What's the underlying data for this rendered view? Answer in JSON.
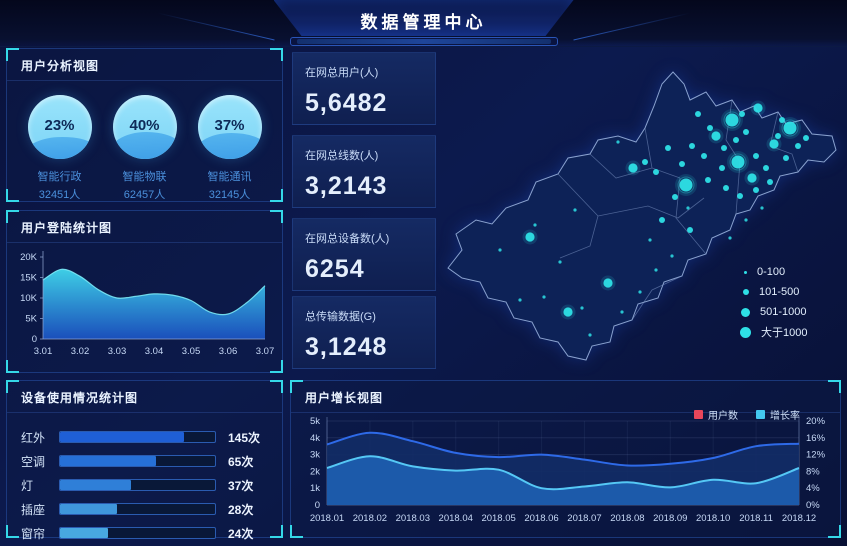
{
  "header": {
    "title": "数据管理中心"
  },
  "panels": {
    "user_analysis": {
      "title": "用户分析视图",
      "gauges": [
        {
          "percent": "23%",
          "value": 23,
          "label": "智能行政",
          "count": "32451人"
        },
        {
          "percent": "40%",
          "value": 40,
          "label": "智能物联",
          "count": "62457人"
        },
        {
          "percent": "37%",
          "value": 37,
          "label": "智能通讯",
          "count": "32145人"
        }
      ]
    },
    "login_stats": {
      "title": "用户登陆统计图"
    },
    "device_usage": {
      "title": "设备使用情况统计图",
      "rows": [
        {
          "label": "红外",
          "value": "145次",
          "pct": 80
        },
        {
          "label": "空调",
          "value": "65次",
          "pct": 62
        },
        {
          "label": "灯",
          "value": "37次",
          "pct": 46
        },
        {
          "label": "插座",
          "value": "28次",
          "pct": 37
        },
        {
          "label": "窗帘",
          "value": "24次",
          "pct": 31
        }
      ]
    },
    "user_growth": {
      "title": "用户增长视图",
      "legend": [
        {
          "label": "用户数",
          "color": "#e8465a"
        },
        {
          "label": "增长率",
          "color": "#43c8f0"
        }
      ]
    }
  },
  "stats": [
    {
      "label": "在网总用户(人)",
      "value": "5,6482"
    },
    {
      "label": "在网总线数(人)",
      "value": "3,2143"
    },
    {
      "label": "在网总设备数(人)",
      "value": "6254"
    },
    {
      "label": "总传输数据(G)",
      "value": "3,1248"
    }
  ],
  "map": {
    "legend": [
      {
        "label": "0-100",
        "size": "s"
      },
      {
        "label": "101-500",
        "size": "m"
      },
      {
        "label": "501-1000",
        "size": "l"
      },
      {
        "label": "大于1000",
        "size": "xl"
      }
    ],
    "points": [
      [
        292,
        70,
        "xl"
      ],
      [
        350,
        78,
        "xl"
      ],
      [
        298,
        112,
        "xl"
      ],
      [
        246,
        135,
        "xl"
      ],
      [
        318,
        58,
        "l"
      ],
      [
        276,
        86,
        "l"
      ],
      [
        334,
        94,
        "l"
      ],
      [
        312,
        128,
        "l"
      ],
      [
        193,
        118,
        "l"
      ],
      [
        90,
        187,
        "l"
      ],
      [
        168,
        233,
        "l"
      ],
      [
        128,
        262,
        "l"
      ],
      [
        258,
        64,
        "m"
      ],
      [
        270,
        78,
        "m"
      ],
      [
        284,
        98,
        "m"
      ],
      [
        296,
        90,
        "m"
      ],
      [
        306,
        82,
        "m"
      ],
      [
        316,
        106,
        "m"
      ],
      [
        326,
        118,
        "m"
      ],
      [
        338,
        86,
        "m"
      ],
      [
        346,
        108,
        "m"
      ],
      [
        358,
        96,
        "m"
      ],
      [
        282,
        118,
        "m"
      ],
      [
        264,
        106,
        "m"
      ],
      [
        252,
        96,
        "m"
      ],
      [
        242,
        114,
        "m"
      ],
      [
        268,
        130,
        "m"
      ],
      [
        286,
        138,
        "m"
      ],
      [
        300,
        146,
        "m"
      ],
      [
        316,
        140,
        "m"
      ],
      [
        330,
        132,
        "m"
      ],
      [
        228,
        98,
        "m"
      ],
      [
        216,
        122,
        "m"
      ],
      [
        302,
        64,
        "m"
      ],
      [
        342,
        70,
        "m"
      ],
      [
        366,
        88,
        "m"
      ],
      [
        235,
        147,
        "m"
      ],
      [
        205,
        112,
        "m"
      ],
      [
        222,
        170,
        "m"
      ],
      [
        250,
        180,
        "m"
      ],
      [
        60,
        200,
        "s"
      ],
      [
        95,
        175,
        "s"
      ],
      [
        120,
        212,
        "s"
      ],
      [
        104,
        247,
        "s"
      ],
      [
        142,
        258,
        "s"
      ],
      [
        150,
        285,
        "s"
      ],
      [
        182,
        262,
        "s"
      ],
      [
        200,
        242,
        "s"
      ],
      [
        216,
        220,
        "s"
      ],
      [
        135,
        160,
        "s"
      ],
      [
        80,
        250,
        "s"
      ],
      [
        178,
        92,
        "s"
      ],
      [
        306,
        170,
        "s"
      ],
      [
        322,
        158,
        "s"
      ],
      [
        290,
        188,
        "s"
      ],
      [
        248,
        158,
        "s"
      ],
      [
        210,
        190,
        "s"
      ],
      [
        232,
        206,
        "s"
      ]
    ]
  },
  "colors": {
    "accent": "#35d8e8",
    "dot": "#2ee0e6",
    "login_grad_top": "#41d8ee",
    "login_grad_bottom": "#1c55c8",
    "login_stroke": "#7ae8f5",
    "users_line": "#2e6ae8",
    "users_fill": "#122c66",
    "growth_line": "#55c8f5",
    "growth_fill": "#1d5dae",
    "bar_colors": [
      "#1f5fd6",
      "#2670d8",
      "#2f7fd8",
      "#3f97dc",
      "#48a8e0"
    ]
  },
  "chart_data": [
    {
      "type": "area",
      "title": "用户登陆统计图",
      "x": [
        3.01,
        3.015,
        3.02,
        3.025,
        3.03,
        3.035,
        3.04,
        3.045,
        3.05,
        3.055,
        3.06,
        3.065,
        3.07
      ],
      "values": [
        14.4,
        17.0,
        15.3,
        12.0,
        10.0,
        10.4,
        11.0,
        10.7,
        9.4,
        6.6,
        6.1,
        8.8,
        13.0
      ],
      "xticks": [
        "3.01",
        "3.02",
        "3.03",
        "3.04",
        "3.05",
        "3.06",
        "3.07"
      ],
      "yticks": [
        "0",
        "5K",
        "10K",
        "15K",
        "20K"
      ],
      "ylim": [
        0,
        20
      ],
      "unit": "K",
      "grid": false,
      "legend": null
    },
    {
      "type": "bar",
      "title": "设备使用情况统计图",
      "categories": [
        "红外",
        "空调",
        "灯",
        "插座",
        "窗帘"
      ],
      "values": [
        145,
        65,
        37,
        28,
        24
      ],
      "unit": "次",
      "orientation": "horizontal"
    },
    {
      "type": "line",
      "title": "用户增长视图",
      "categories": [
        "2018.01",
        "2018.02",
        "2018.03",
        "2018.04",
        "2018.05",
        "2018.06",
        "2018.07",
        "2018.08",
        "2018.09",
        "2018.10",
        "2018.11",
        "2018.12"
      ],
      "series": [
        {
          "name": "用户数",
          "axis": "left",
          "values": [
            3600,
            4300,
            3800,
            3100,
            2850,
            3000,
            2700,
            2350,
            2450,
            2800,
            3500,
            3650
          ]
        },
        {
          "name": "增长率",
          "axis": "right",
          "values": [
            8.8,
            11.6,
            9.2,
            8.2,
            8.4,
            4.0,
            4.4,
            5.4,
            4.2,
            6.0,
            5.2,
            8.8
          ]
        }
      ],
      "ylim_left": [
        0,
        5000
      ],
      "ylim_right": [
        0,
        20
      ],
      "yticks_left": [
        "0",
        "1k",
        "2k",
        "3k",
        "4k",
        "5k"
      ],
      "yticks_right": [
        "0%",
        "4%",
        "8%",
        "12%",
        "16%",
        "20%"
      ],
      "grid": true,
      "legend_position": "top-right"
    },
    {
      "type": "scatter",
      "title": "区域分布地图",
      "legend": [
        "0-100",
        "101-500",
        "501-1000",
        "大于1000"
      ]
    }
  ]
}
